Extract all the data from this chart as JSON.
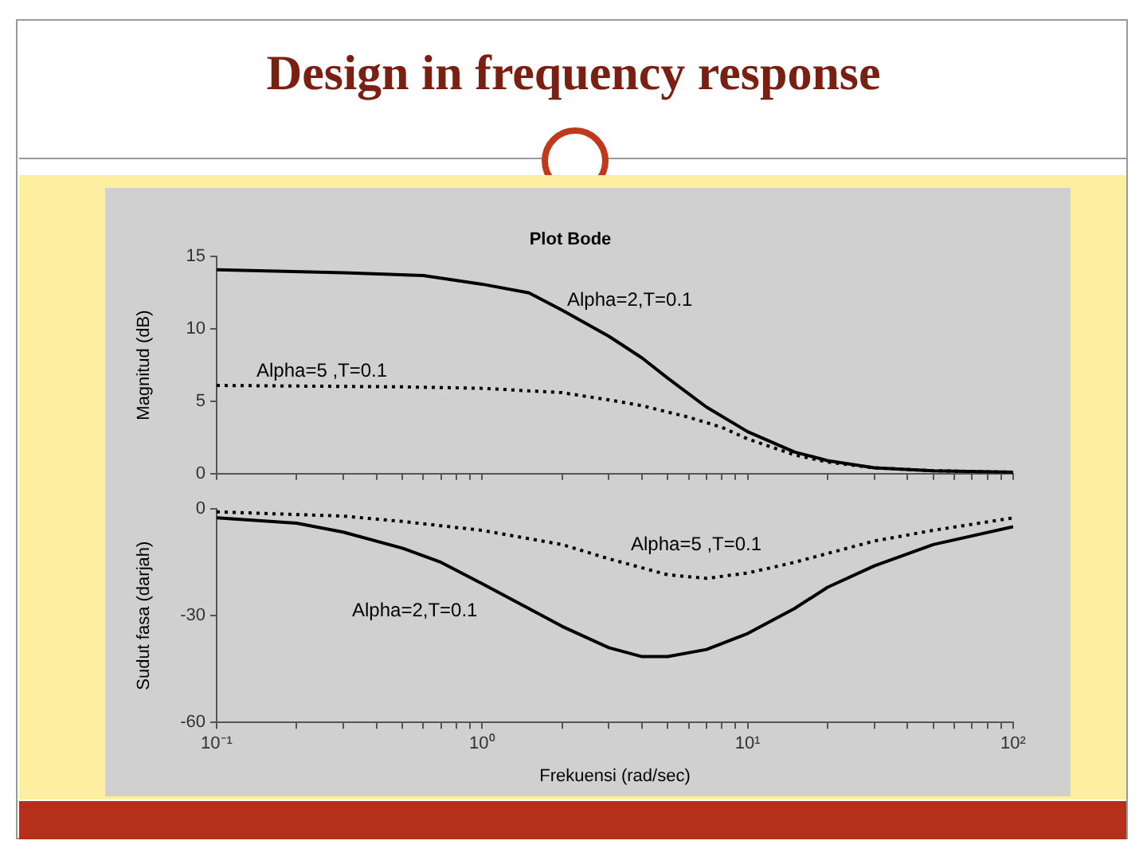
{
  "chart_data": [
    {
      "type": "line",
      "title": "Design in frequency response",
      "subtitle": "Plot Bode",
      "ylabel": "Magnitud (dB)",
      "xlim": [
        0.1,
        100
      ],
      "ylim": [
        0,
        15
      ],
      "xticks": [
        {
          "value": 0.1,
          "label": null
        },
        {
          "value": 0.2,
          "label": null
        },
        {
          "value": 0.3,
          "label": null
        },
        {
          "value": 0.4,
          "label": null
        },
        {
          "value": 0.5,
          "label": null
        },
        {
          "value": 0.6,
          "label": null
        },
        {
          "value": 0.7,
          "label": null
        },
        {
          "value": 0.8,
          "label": null
        },
        {
          "value": 0.9,
          "label": null
        },
        {
          "value": 1,
          "label": null
        },
        {
          "value": 2,
          "label": null
        },
        {
          "value": 3,
          "label": null
        },
        {
          "value": 4,
          "label": null
        },
        {
          "value": 5,
          "label": null
        },
        {
          "value": 6,
          "label": null
        },
        {
          "value": 7,
          "label": null
        },
        {
          "value": 8,
          "label": null
        },
        {
          "value": 9,
          "label": null
        },
        {
          "value": 10,
          "label": null
        },
        {
          "value": 20,
          "label": null
        },
        {
          "value": 30,
          "label": null
        },
        {
          "value": 40,
          "label": null
        },
        {
          "value": 50,
          "label": null
        },
        {
          "value": 60,
          "label": null
        },
        {
          "value": 70,
          "label": null
        },
        {
          "value": 80,
          "label": null
        },
        {
          "value": 90,
          "label": null
        },
        {
          "value": 100,
          "label": null
        }
      ],
      "yticks": [
        0,
        5,
        10,
        15
      ],
      "log": "x",
      "grid": false,
      "tick_labels": "y",
      "series": [
        {
          "color": "#000000",
          "line_style": "solid",
          "x": [
            0.1,
            0.3,
            0.6,
            1,
            1.5,
            2,
            3,
            4,
            5,
            7,
            10,
            15,
            20,
            30,
            50,
            100
          ],
          "values": [
            14.1,
            13.9,
            13.7,
            13.1,
            12.5,
            11.3,
            9.5,
            8.0,
            6.6,
            4.6,
            2.9,
            1.5,
            0.9,
            0.4,
            0.2,
            0.1
          ]
        },
        {
          "color": "#000000",
          "line_style": "dotted",
          "x": [
            0.1,
            0.5,
            1,
            2,
            3,
            4,
            6,
            8,
            10,
            15,
            20,
            30,
            50,
            100
          ],
          "values": [
            6.1,
            6.0,
            5.9,
            5.6,
            5.1,
            4.7,
            3.9,
            3.2,
            2.4,
            1.3,
            0.8,
            0.4,
            0.2,
            0.1
          ]
        }
      ],
      "annotations": [
        "Alpha=2,T=0.1",
        "Alpha=5 ,T=0.1"
      ]
    },
    {
      "type": "line",
      "xlabel": "Frekuensi (rad/sec)",
      "ylabel": "Sudut fasa (darjah)",
      "xlim": [
        0.1,
        100
      ],
      "ylim": [
        -60,
        0
      ],
      "xticks": [
        {
          "value": 0.1,
          "label": "10⁻¹"
        },
        {
          "value": 0.2,
          "label": null
        },
        {
          "value": 0.3,
          "label": null
        },
        {
          "value": 0.4,
          "label": null
        },
        {
          "value": 0.5,
          "label": null
        },
        {
          "value": 0.6,
          "label": null
        },
        {
          "value": 0.7,
          "label": null
        },
        {
          "value": 0.8,
          "label": null
        },
        {
          "value": 0.9,
          "label": null
        },
        {
          "value": 1,
          "label": "10⁰"
        },
        {
          "value": 2,
          "label": null
        },
        {
          "value": 3,
          "label": null
        },
        {
          "value": 4,
          "label": null
        },
        {
          "value": 5,
          "label": null
        },
        {
          "value": 6,
          "label": null
        },
        {
          "value": 7,
          "label": null
        },
        {
          "value": 8,
          "label": null
        },
        {
          "value": 9,
          "label": null
        },
        {
          "value": 10,
          "label": "10¹"
        },
        {
          "value": 20,
          "label": null
        },
        {
          "value": 30,
          "label": null
        },
        {
          "value": 40,
          "label": null
        },
        {
          "value": 50,
          "label": null
        },
        {
          "value": 60,
          "label": null
        },
        {
          "value": 70,
          "label": null
        },
        {
          "value": 80,
          "label": null
        },
        {
          "value": 90,
          "label": null
        },
        {
          "value": 100,
          "label": "10²"
        }
      ],
      "yticks": [
        -60,
        -30,
        0
      ],
      "log": "x",
      "grid": false,
      "series": [
        {
          "color": "#000000",
          "line_style": "solid",
          "x": [
            0.1,
            0.2,
            0.3,
            0.5,
            0.7,
            1,
            1.5,
            2,
            3,
            4,
            5,
            7,
            10,
            15,
            20,
            30,
            50,
            100
          ],
          "values": [
            -2.5,
            -4,
            -6.5,
            -11,
            -15,
            -21,
            -28,
            -33,
            -39,
            -41.5,
            -41.5,
            -39.5,
            -35,
            -28,
            -22,
            -16,
            -10,
            -5
          ]
        },
        {
          "color": "#000000",
          "line_style": "dotted",
          "x": [
            0.1,
            0.3,
            0.5,
            1,
            2,
            3,
            5,
            7,
            10,
            15,
            20,
            30,
            50,
            100
          ],
          "values": [
            -0.8,
            -2,
            -3.5,
            -6,
            -10,
            -14,
            -18.5,
            -19.5,
            -18,
            -15,
            -12.5,
            -9,
            -6,
            -2.5
          ]
        }
      ],
      "annotations": [
        "Alpha=5 ,T=0.1",
        "Alpha=2,T=0.1"
      ]
    }
  ]
}
